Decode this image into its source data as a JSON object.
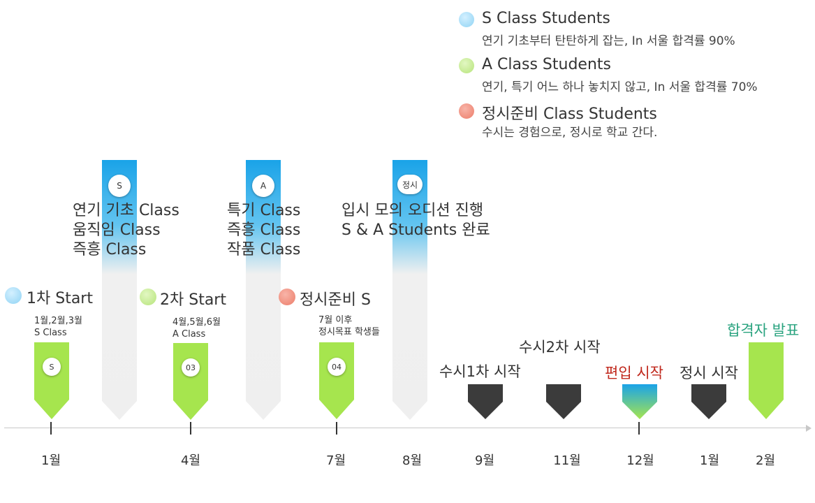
{
  "legend": [
    {
      "title": "S Class Students",
      "desc": "연기 기초부터 탄탄하게 잡는, In 서울 합격률 90%",
      "color": "#a8dcf0"
    },
    {
      "title": "A Class Students",
      "desc": "연기, 특기 어느 하나 놓치지 않고, In 서울 합격률 70%",
      "color": "#bfe98a"
    },
    {
      "title": "정시준비 Class Students",
      "desc": "수시는 경험으로, 정시로 학교 간다.",
      "color": "#f08878"
    }
  ],
  "columns": [
    {
      "badge": "S",
      "lines": [
        "연기 기초 Class",
        "움직임 Class",
        "즉흥 Class"
      ]
    },
    {
      "badge": "A",
      "lines": [
        "특기 Class",
        "즉흥 Class",
        "작품 Class"
      ]
    },
    {
      "badge": "정시",
      "lines": [
        "입시 모의 오디션 진행",
        "S & A Students 완료"
      ]
    }
  ],
  "starts": [
    {
      "label": "1차 Start",
      "sub1": "1월,2월,3월",
      "sub2": "S Class",
      "badge": "S"
    },
    {
      "label": "2차 Start",
      "sub1": "4월,5월,6월",
      "sub2": "A Class",
      "badge": "03"
    },
    {
      "label": "정시준비 S",
      "sub1": "7월 이후",
      "sub2": "정시목표 학생들",
      "badge": "04"
    }
  ],
  "events": [
    {
      "label": "수시1차 시작"
    },
    {
      "label": "수시2차 시작"
    },
    {
      "label": "편입 시작",
      "color": "#c0281c"
    },
    {
      "label": "정시 시작"
    },
    {
      "label": "합격자 발표",
      "color": "#2aa37f"
    }
  ],
  "months": [
    "1월",
    "4월",
    "7월",
    "8월",
    "9월",
    "11월",
    "12월",
    "1월",
    "2월"
  ],
  "colors": {
    "blue": "#1aa3e8",
    "green": "#a6e54e",
    "dark": "#3b3b3b",
    "axis": "#c8c8c8"
  }
}
